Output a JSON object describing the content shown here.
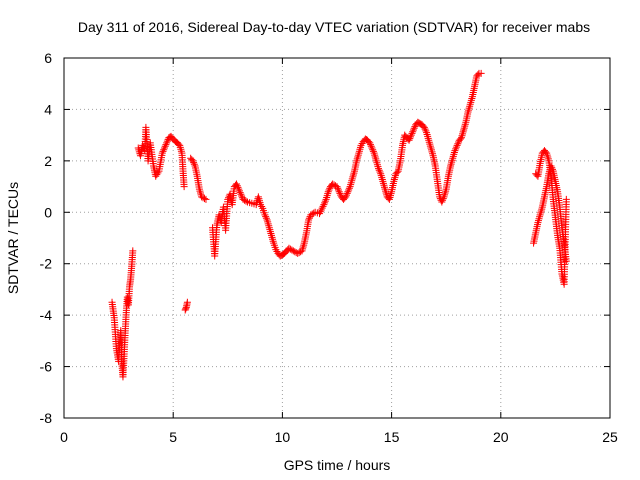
{
  "chart_data": {
    "type": "scatter",
    "title": "Day 311 of 2016, Sidereal Day-to-day VTEC variation (SDTVAR) for receiver mabs",
    "xlabel": "GPS time / hours",
    "ylabel": "SDTVAR / TECUs",
    "xlim": [
      0,
      25
    ],
    "ylim": [
      -8,
      6
    ],
    "xticks": [
      0,
      5,
      10,
      15,
      20,
      25
    ],
    "yticks": [
      -8,
      -6,
      -4,
      -2,
      0,
      2,
      4,
      6
    ],
    "grid": true,
    "marker": "+",
    "series": [
      {
        "name": "SDTVAR",
        "color": "#ff0000",
        "segments": [
          [
            [
              2.2,
              -3.5
            ],
            [
              2.3,
              -4.1
            ],
            [
              2.4,
              -5.3
            ],
            [
              2.5,
              -5.8
            ],
            [
              2.55,
              -5.1
            ],
            [
              2.6,
              -4.6
            ],
            [
              2.65,
              -5.9
            ],
            [
              2.7,
              -6.4
            ],
            [
              2.75,
              -5.6
            ],
            [
              2.8,
              -4.7
            ],
            [
              2.85,
              -3.9
            ],
            [
              2.9,
              -3.3
            ],
            [
              2.95,
              -3.6
            ],
            [
              3.0,
              -2.9
            ],
            [
              3.05,
              -2.6
            ],
            [
              3.1,
              -2.1
            ],
            [
              3.15,
              -1.5
            ]
          ],
          [
            [
              3.4,
              2.5
            ],
            [
              3.5,
              2.2
            ],
            [
              3.6,
              2.6
            ],
            [
              3.7,
              2.4
            ],
            [
              3.75,
              3.3
            ],
            [
              3.85,
              2.0
            ],
            [
              3.95,
              2.7
            ],
            [
              4.1,
              1.8
            ],
            [
              4.2,
              1.4
            ],
            [
              4.35,
              1.6
            ],
            [
              4.5,
              2.3
            ],
            [
              4.6,
              2.5
            ],
            [
              4.7,
              2.7
            ],
            [
              4.8,
              2.9
            ],
            [
              4.9,
              2.95
            ],
            [
              5.0,
              2.85
            ],
            [
              5.1,
              2.75
            ],
            [
              5.2,
              2.7
            ],
            [
              5.3,
              2.6
            ],
            [
              5.4,
              2.3
            ],
            [
              5.45,
              1.6
            ],
            [
              5.5,
              1.0
            ]
          ],
          [
            [
              5.55,
              -3.8
            ],
            [
              5.6,
              -3.7
            ],
            [
              5.65,
              -3.5
            ]
          ],
          [
            [
              5.8,
              2.1
            ],
            [
              5.9,
              2.0
            ],
            [
              6.0,
              1.8
            ],
            [
              6.1,
              1.4
            ],
            [
              6.2,
              0.9
            ],
            [
              6.3,
              0.6
            ],
            [
              6.5,
              0.5
            ]
          ],
          [
            [
              6.8,
              -0.6
            ],
            [
              6.9,
              -1.7
            ],
            [
              7.0,
              -0.5
            ],
            [
              7.1,
              -0.1
            ],
            [
              7.2,
              -0.4
            ],
            [
              7.3,
              0.2
            ],
            [
              7.4,
              -0.7
            ],
            [
              7.5,
              0.5
            ],
            [
              7.6,
              0.7
            ],
            [
              7.7,
              0.3
            ],
            [
              7.8,
              1.0
            ],
            [
              7.9,
              1.1
            ],
            [
              8.0,
              0.9
            ],
            [
              8.1,
              0.7
            ],
            [
              8.2,
              0.5
            ],
            [
              8.4,
              0.4
            ],
            [
              8.6,
              0.35
            ],
            [
              8.8,
              0.3
            ],
            [
              8.9,
              0.6
            ],
            [
              9.0,
              0.3
            ],
            [
              9.1,
              0.15
            ],
            [
              9.2,
              -0.1
            ],
            [
              9.3,
              -0.3
            ],
            [
              9.4,
              -0.6
            ],
            [
              9.5,
              -0.9
            ],
            [
              9.6,
              -1.2
            ],
            [
              9.7,
              -1.45
            ],
            [
              9.8,
              -1.6
            ],
            [
              9.9,
              -1.7
            ],
            [
              10.0,
              -1.65
            ],
            [
              10.1,
              -1.6
            ],
            [
              10.2,
              -1.5
            ],
            [
              10.3,
              -1.4
            ],
            [
              10.5,
              -1.5
            ],
            [
              10.7,
              -1.6
            ],
            [
              10.9,
              -1.5
            ],
            [
              11.0,
              -1.2
            ],
            [
              11.1,
              -0.8
            ],
            [
              11.2,
              -0.3
            ],
            [
              11.3,
              -0.1
            ],
            [
              11.5,
              0.0
            ],
            [
              11.7,
              -0.05
            ],
            [
              11.9,
              0.3
            ],
            [
              12.0,
              0.5
            ],
            [
              12.1,
              0.8
            ],
            [
              12.2,
              1.0
            ],
            [
              12.3,
              1.1
            ],
            [
              12.5,
              1.0
            ],
            [
              12.6,
              0.8
            ],
            [
              12.7,
              0.6
            ],
            [
              12.8,
              0.5
            ],
            [
              12.9,
              0.6
            ],
            [
              13.0,
              0.8
            ],
            [
              13.1,
              1.0
            ],
            [
              13.2,
              1.3
            ],
            [
              13.3,
              1.6
            ],
            [
              13.4,
              2.0
            ],
            [
              13.5,
              2.3
            ],
            [
              13.6,
              2.6
            ],
            [
              13.7,
              2.75
            ],
            [
              13.8,
              2.85
            ],
            [
              13.9,
              2.8
            ],
            [
              14.0,
              2.7
            ],
            [
              14.1,
              2.5
            ],
            [
              14.2,
              2.3
            ],
            [
              14.3,
              2.0
            ],
            [
              14.4,
              1.7
            ],
            [
              14.5,
              1.5
            ],
            [
              14.6,
              1.2
            ],
            [
              14.7,
              0.9
            ],
            [
              14.8,
              0.6
            ],
            [
              14.9,
              0.5
            ],
            [
              15.0,
              0.8
            ],
            [
              15.1,
              1.2
            ],
            [
              15.2,
              1.5
            ],
            [
              15.3,
              1.6
            ],
            [
              15.4,
              2.0
            ],
            [
              15.5,
              2.6
            ],
            [
              15.6,
              3.0
            ],
            [
              15.7,
              2.9
            ],
            [
              15.8,
              2.8
            ],
            [
              15.9,
              3.0
            ],
            [
              16.0,
              3.2
            ],
            [
              16.1,
              3.4
            ],
            [
              16.2,
              3.5
            ],
            [
              16.3,
              3.45
            ],
            [
              16.4,
              3.4
            ],
            [
              16.5,
              3.3
            ],
            [
              16.6,
              3.1
            ],
            [
              16.7,
              2.8
            ],
            [
              16.8,
              2.5
            ],
            [
              16.9,
              2.2
            ],
            [
              17.0,
              1.8
            ],
            [
              17.1,
              1.2
            ],
            [
              17.2,
              0.6
            ],
            [
              17.3,
              0.4
            ],
            [
              17.4,
              0.6
            ],
            [
              17.5,
              0.9
            ],
            [
              17.6,
              1.4
            ],
            [
              17.7,
              1.8
            ],
            [
              17.8,
              2.1
            ],
            [
              17.9,
              2.4
            ],
            [
              18.0,
              2.6
            ],
            [
              18.1,
              2.8
            ],
            [
              18.2,
              2.9
            ],
            [
              18.3,
              3.2
            ],
            [
              18.4,
              3.5
            ],
            [
              18.5,
              3.9
            ],
            [
              18.6,
              4.2
            ],
            [
              18.7,
              4.5
            ],
            [
              18.8,
              4.9
            ],
            [
              18.9,
              5.3
            ],
            [
              19.0,
              5.4
            ],
            [
              19.1,
              5.4
            ]
          ],
          [
            [
              21.5,
              -1.2
            ],
            [
              21.6,
              -0.8
            ],
            [
              21.7,
              -0.4
            ],
            [
              21.8,
              -0.1
            ],
            [
              21.9,
              0.2
            ],
            [
              22.0,
              0.6
            ],
            [
              22.1,
              1.0
            ],
            [
              22.2,
              1.5
            ],
            [
              22.3,
              1.8
            ],
            [
              22.4,
              1.6
            ],
            [
              22.5,
              1.2
            ],
            [
              22.6,
              0.8
            ],
            [
              22.7,
              0.2
            ],
            [
              22.8,
              -0.6
            ],
            [
              22.9,
              -1.2
            ],
            [
              23.0,
              -1.9
            ]
          ],
          [
            [
              21.6,
              1.5
            ],
            [
              21.7,
              1.4
            ],
            [
              21.8,
              1.9
            ],
            [
              21.9,
              2.3
            ],
            [
              22.0,
              2.4
            ],
            [
              22.1,
              2.3
            ],
            [
              22.2,
              2.0
            ],
            [
              22.3,
              1.4
            ],
            [
              22.4,
              0.5
            ],
            [
              22.5,
              -0.2
            ],
            [
              22.6,
              -0.9
            ],
            [
              22.7,
              -1.4
            ],
            [
              22.8,
              -2.4
            ],
            [
              22.9,
              -2.8
            ],
            [
              23.0,
              0.5
            ]
          ]
        ]
      }
    ]
  }
}
